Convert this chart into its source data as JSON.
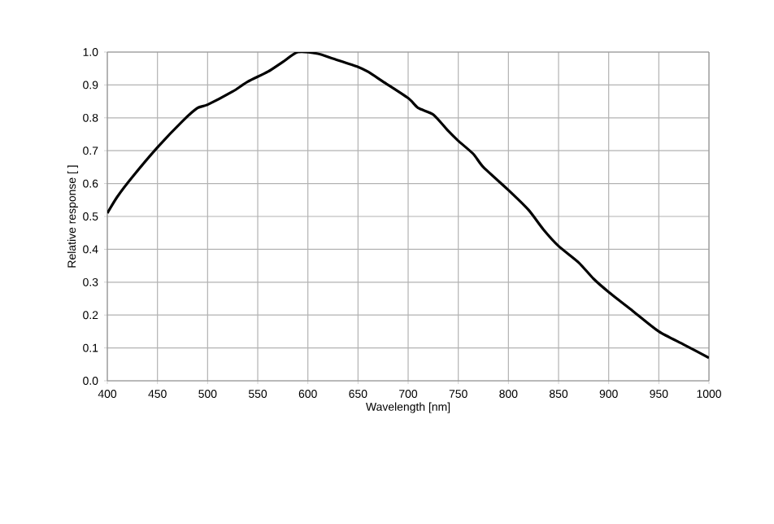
{
  "chart_data": {
    "type": "line",
    "xlabel": "Wavelength [nm]",
    "ylabel": "Relative response [ ]",
    "x": [
      400,
      410,
      425,
      450,
      475,
      490,
      500,
      525,
      540,
      560,
      575,
      590,
      610,
      625,
      650,
      660,
      675,
      700,
      710,
      725,
      740,
      750,
      765,
      775,
      800,
      820,
      835,
      850,
      870,
      885,
      900,
      925,
      950,
      975,
      1000
    ],
    "series": [
      {
        "color": "#000000",
        "values": [
          0.51,
          0.56,
          0.62,
          0.71,
          0.79,
          0.83,
          0.84,
          0.88,
          0.91,
          0.94,
          0.97,
          1.0,
          0.995,
          0.98,
          0.955,
          0.94,
          0.91,
          0.86,
          0.83,
          0.81,
          0.76,
          0.73,
          0.69,
          0.65,
          0.58,
          0.52,
          0.46,
          0.41,
          0.36,
          0.31,
          0.27,
          0.21,
          0.15,
          0.11,
          0.07
        ]
      }
    ],
    "xlim": [
      400,
      1000
    ],
    "ylim": [
      0,
      1
    ],
    "xticks": [
      400,
      450,
      500,
      550,
      600,
      650,
      700,
      750,
      800,
      850,
      900,
      950,
      1000
    ],
    "yticks": [
      {
        "value": 0,
        "label": "0.0"
      },
      {
        "value": 0.1,
        "label": "0.1"
      },
      {
        "value": 0.2,
        "label": "0.2"
      },
      {
        "value": 0.3,
        "label": "0.3"
      },
      {
        "value": 0.4,
        "label": "0.4"
      },
      {
        "value": 0.5,
        "label": "0.5"
      },
      {
        "value": 0.6,
        "label": "0.6"
      },
      {
        "value": 0.7,
        "label": "0.7"
      },
      {
        "value": 0.8,
        "label": "0.8"
      },
      {
        "value": 0.9,
        "label": "0.9"
      },
      {
        "value": 1,
        "label": "1.0"
      }
    ],
    "grid": true,
    "marker": "none",
    "line_style": "solid"
  }
}
